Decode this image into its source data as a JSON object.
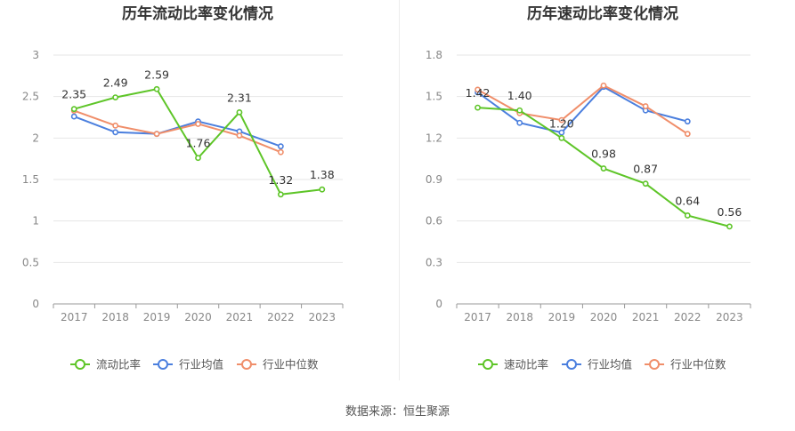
{
  "source_label": "数据来源：恒生聚源",
  "chart_data": [
    {
      "type": "line",
      "title": "历年流动比率变化情况",
      "categories": [
        "2017",
        "2018",
        "2019",
        "2020",
        "2021",
        "2022",
        "2023"
      ],
      "ylim": [
        0,
        3
      ],
      "yticks": [
        0,
        0.5,
        1,
        1.5,
        2,
        2.5,
        3
      ],
      "ytick_labels": [
        "0",
        "0.5",
        "1",
        "1.5",
        "2",
        "2.5",
        "3"
      ],
      "grid": true,
      "legend_position": "bottom",
      "series": [
        {
          "name": "流动比率",
          "color": "#5ec528",
          "values": [
            2.35,
            2.49,
            2.59,
            1.76,
            2.31,
            1.32,
            1.38
          ],
          "labels": [
            "2.35",
            "2.49",
            "2.59",
            "1.76",
            "2.31",
            "1.32",
            "1.38"
          ]
        },
        {
          "name": "行业均值",
          "color": "#4b7fde",
          "values": [
            2.26,
            2.07,
            2.05,
            2.2,
            2.08,
            1.9,
            null
          ]
        },
        {
          "name": "行业中位数",
          "color": "#f08e6a",
          "values": [
            2.33,
            2.15,
            2.05,
            2.17,
            2.03,
            1.83,
            null
          ]
        }
      ]
    },
    {
      "type": "line",
      "title": "历年速动比率变化情况",
      "categories": [
        "2017",
        "2018",
        "2019",
        "2020",
        "2021",
        "2022",
        "2023"
      ],
      "ylim": [
        0,
        1.8
      ],
      "yticks": [
        0,
        0.3,
        0.6,
        0.9,
        1.2,
        1.5,
        1.8
      ],
      "ytick_labels": [
        "0",
        "0.3",
        "0.6",
        "0.9",
        "1.2",
        "1.5",
        "1.8"
      ],
      "grid": true,
      "legend_position": "bottom",
      "series": [
        {
          "name": "速动比率",
          "color": "#5ec528",
          "values": [
            1.42,
            1.4,
            1.2,
            0.98,
            0.87,
            0.64,
            0.56
          ],
          "labels": [
            "1.42",
            "1.40",
            "1.20",
            "0.98",
            "0.87",
            "0.64",
            "0.56"
          ]
        },
        {
          "name": "行业均值",
          "color": "#4b7fde",
          "values": [
            1.53,
            1.31,
            1.24,
            1.57,
            1.4,
            1.32,
            null
          ]
        },
        {
          "name": "行业中位数",
          "color": "#f08e6a",
          "values": [
            1.55,
            1.38,
            1.33,
            1.58,
            1.43,
            1.23,
            null
          ]
        }
      ]
    }
  ]
}
